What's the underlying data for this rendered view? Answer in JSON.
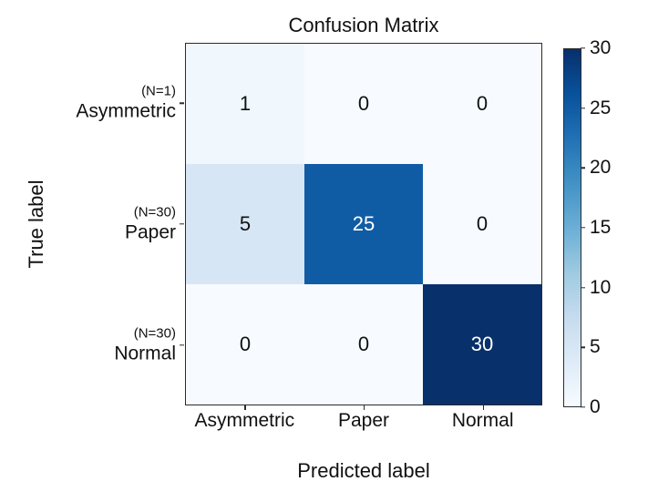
{
  "chart_data": {
    "type": "heatmap",
    "title": "Confusion Matrix",
    "xlabel": "Predicted label",
    "ylabel": "True label",
    "x_categories": [
      "Asymmetric",
      "Paper",
      "Normal"
    ],
    "y_categories": [
      {
        "n_label": "(N=1)",
        "label": "Asymmetric"
      },
      {
        "n_label": "(N=30)",
        "label": "Paper"
      },
      {
        "n_label": "(N=30)",
        "label": "Normal"
      }
    ],
    "matrix": [
      [
        1,
        0,
        0
      ],
      [
        5,
        25,
        0
      ],
      [
        0,
        0,
        30
      ]
    ],
    "vmin": 0,
    "vmax": 30,
    "colorbar_ticks": [
      0,
      5,
      10,
      15,
      20,
      25,
      30
    ],
    "legend_position": "right-colorbar",
    "grid": false,
    "colormap": {
      "name": "Blues",
      "stops": [
        "#f7fbff",
        "#deebf7",
        "#c6dbef",
        "#9ecae1",
        "#6baed6",
        "#4292c6",
        "#2171b5",
        "#08519c",
        "#08306b"
      ]
    },
    "colors": {
      "text_dark": "#111111",
      "text_light": "#ffffff",
      "spine": "#2b2b2b",
      "background": "#ffffff"
    }
  }
}
